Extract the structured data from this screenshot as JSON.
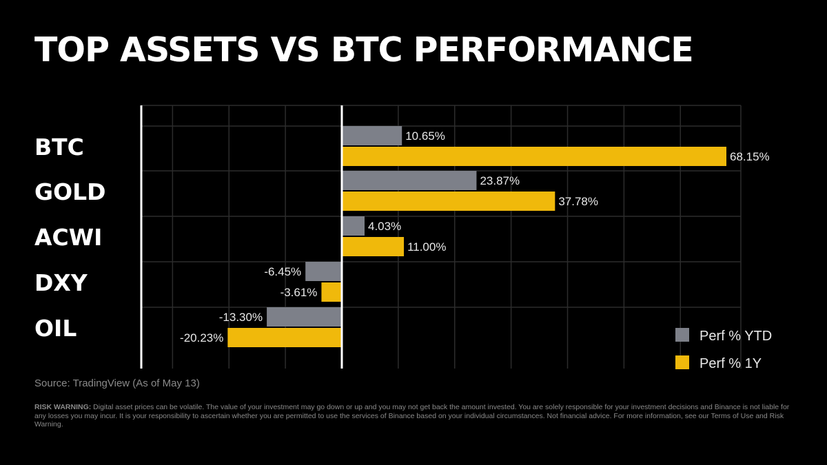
{
  "title": "TOP ASSETS VS BTC PERFORMANCE",
  "chart_data": {
    "type": "bar",
    "orientation": "horizontal",
    "categories": [
      "BTC",
      "GOLD",
      "ACWI",
      "DXY",
      "OIL"
    ],
    "series": [
      {
        "name": "Perf % YTD",
        "color": "#7d8089",
        "values": [
          10.65,
          23.87,
          4.03,
          -6.45,
          -13.3
        ],
        "labels": [
          "10.65%",
          "23.87%",
          "4.03%",
          "-6.45%",
          "-13.30%"
        ]
      },
      {
        "name": "Perf % 1Y",
        "color": "#f0b90b",
        "values": [
          68.15,
          37.78,
          11.0,
          -3.61,
          -20.23
        ],
        "labels": [
          "68.15%",
          "37.78%",
          "11.00%",
          "-3.61%",
          "-20.23%"
        ]
      }
    ],
    "xlim": [
      -30,
      75
    ],
    "grid": true,
    "legend_position": "bottom-right"
  },
  "source": "Source: TradingView (As of May 13)",
  "disclaimer": {
    "heading": "RISK WARNING:",
    "text": "Digital asset prices can be volatile. The value of your investment may go down or up and you may not get back the amount invested. You are solely responsible for your investment decisions and Binance is not liable for any losses you may incur. It is your responsibility to ascertain whether you are permitted to use the services of Binance based on your individual circumstances. Not financial advice. For more information, see our Terms of Use and Risk Warning."
  }
}
